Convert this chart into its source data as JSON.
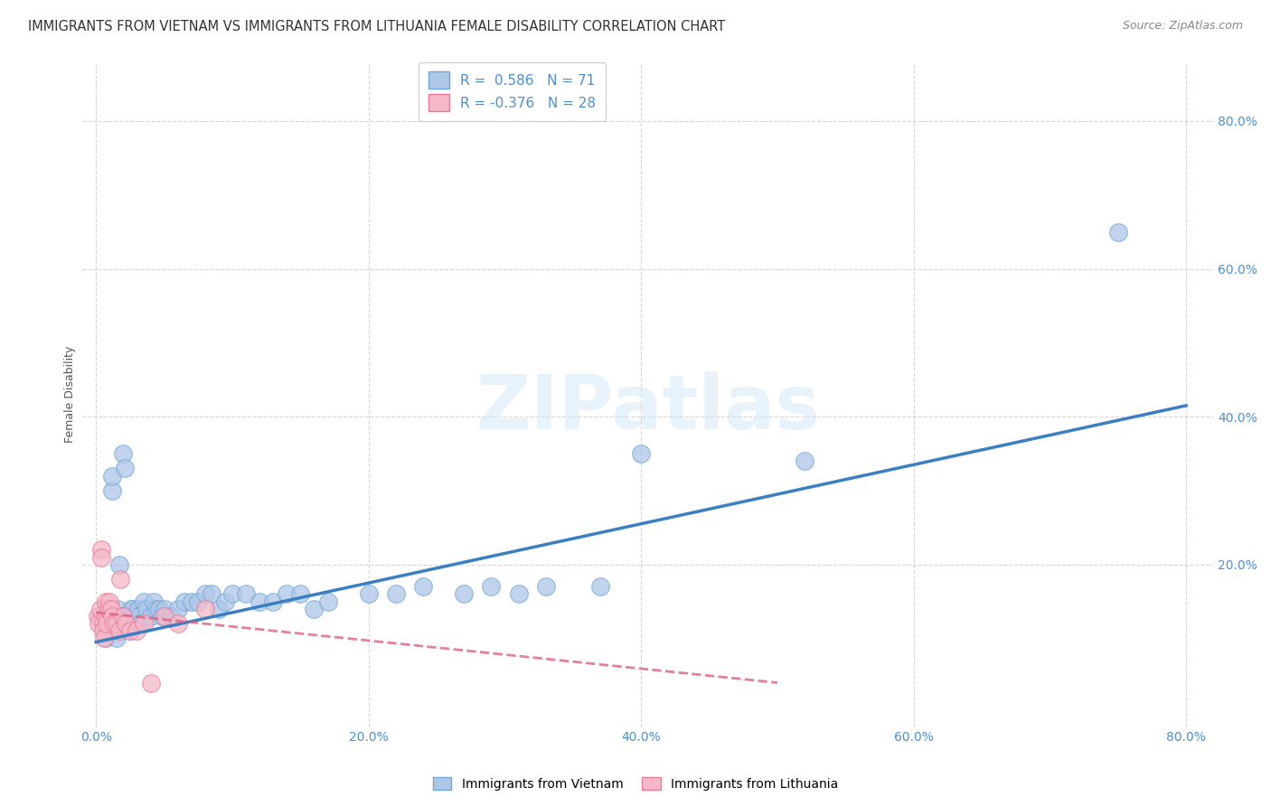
{
  "title": "IMMIGRANTS FROM VIETNAM VS IMMIGRANTS FROM LITHUANIA FEMALE DISABILITY CORRELATION CHART",
  "source": "Source: ZipAtlas.com",
  "ylabel": "Female Disability",
  "watermark": "ZIPatlas",
  "xlim": [
    -0.01,
    0.82
  ],
  "ylim": [
    -0.02,
    0.88
  ],
  "xtick_positions": [
    0.0,
    0.2,
    0.4,
    0.6,
    0.8
  ],
  "ytick_positions": [
    0.2,
    0.4,
    0.6,
    0.8
  ],
  "grid_color": "#cccccc",
  "background_color": "#ffffff",
  "vietnam_color": "#aec6e8",
  "vietnam_edge_color": "#6fa8d8",
  "vietnam_R": 0.586,
  "vietnam_N": 71,
  "vietnam_line_color": "#3a7fc1",
  "lithuania_color": "#f5b8c8",
  "lithuania_edge_color": "#e87a9a",
  "lithuania_R": -0.376,
  "lithuania_N": 28,
  "lithuania_line_color": "#e06080",
  "legend_label_vietnam": "Immigrants from Vietnam",
  "legend_label_lithuania": "Immigrants from Lithuania",
  "vietnam_x": [
    0.003,
    0.005,
    0.006,
    0.007,
    0.007,
    0.008,
    0.008,
    0.009,
    0.009,
    0.01,
    0.01,
    0.011,
    0.012,
    0.012,
    0.013,
    0.013,
    0.014,
    0.015,
    0.015,
    0.016,
    0.017,
    0.018,
    0.019,
    0.02,
    0.021,
    0.022,
    0.023,
    0.025,
    0.026,
    0.027,
    0.028,
    0.03,
    0.031,
    0.032,
    0.033,
    0.035,
    0.037,
    0.04,
    0.042,
    0.044,
    0.046,
    0.048,
    0.05,
    0.055,
    0.06,
    0.065,
    0.07,
    0.075,
    0.08,
    0.085,
    0.09,
    0.095,
    0.1,
    0.11,
    0.12,
    0.13,
    0.14,
    0.15,
    0.16,
    0.17,
    0.2,
    0.22,
    0.24,
    0.27,
    0.29,
    0.31,
    0.33,
    0.37,
    0.4,
    0.52,
    0.75
  ],
  "vietnam_y": [
    0.13,
    0.12,
    0.11,
    0.1,
    0.14,
    0.13,
    0.12,
    0.11,
    0.13,
    0.12,
    0.14,
    0.13,
    0.3,
    0.32,
    0.12,
    0.11,
    0.13,
    0.1,
    0.12,
    0.14,
    0.2,
    0.13,
    0.12,
    0.35,
    0.33,
    0.12,
    0.13,
    0.11,
    0.14,
    0.14,
    0.13,
    0.12,
    0.14,
    0.13,
    0.12,
    0.15,
    0.14,
    0.13,
    0.15,
    0.14,
    0.14,
    0.13,
    0.14,
    0.13,
    0.14,
    0.15,
    0.15,
    0.15,
    0.16,
    0.16,
    0.14,
    0.15,
    0.16,
    0.16,
    0.15,
    0.15,
    0.16,
    0.16,
    0.14,
    0.15,
    0.16,
    0.16,
    0.17,
    0.16,
    0.17,
    0.16,
    0.17,
    0.17,
    0.35,
    0.34,
    0.65
  ],
  "lithuania_x": [
    0.001,
    0.002,
    0.003,
    0.004,
    0.004,
    0.005,
    0.005,
    0.006,
    0.007,
    0.007,
    0.008,
    0.009,
    0.01,
    0.011,
    0.012,
    0.013,
    0.015,
    0.017,
    0.018,
    0.02,
    0.022,
    0.025,
    0.03,
    0.035,
    0.04,
    0.05,
    0.06,
    0.08
  ],
  "lithuania_y": [
    0.13,
    0.12,
    0.14,
    0.22,
    0.21,
    0.12,
    0.11,
    0.1,
    0.15,
    0.13,
    0.12,
    0.14,
    0.15,
    0.14,
    0.13,
    0.12,
    0.12,
    0.11,
    0.18,
    0.13,
    0.12,
    0.11,
    0.11,
    0.12,
    0.04,
    0.13,
    0.12,
    0.14
  ],
  "vietnam_line_x0": 0.0,
  "vietnam_line_x1": 0.8,
  "vietnam_line_y0": 0.095,
  "vietnam_line_y1": 0.415,
  "lithuania_line_x0": 0.0,
  "lithuania_line_x1": 0.5,
  "lithuania_line_y0": 0.135,
  "lithuania_line_y1": 0.04,
  "marker_size": 200,
  "title_fontsize": 10.5,
  "axis_label_fontsize": 9,
  "tick_fontsize": 10,
  "legend_fontsize": 11
}
